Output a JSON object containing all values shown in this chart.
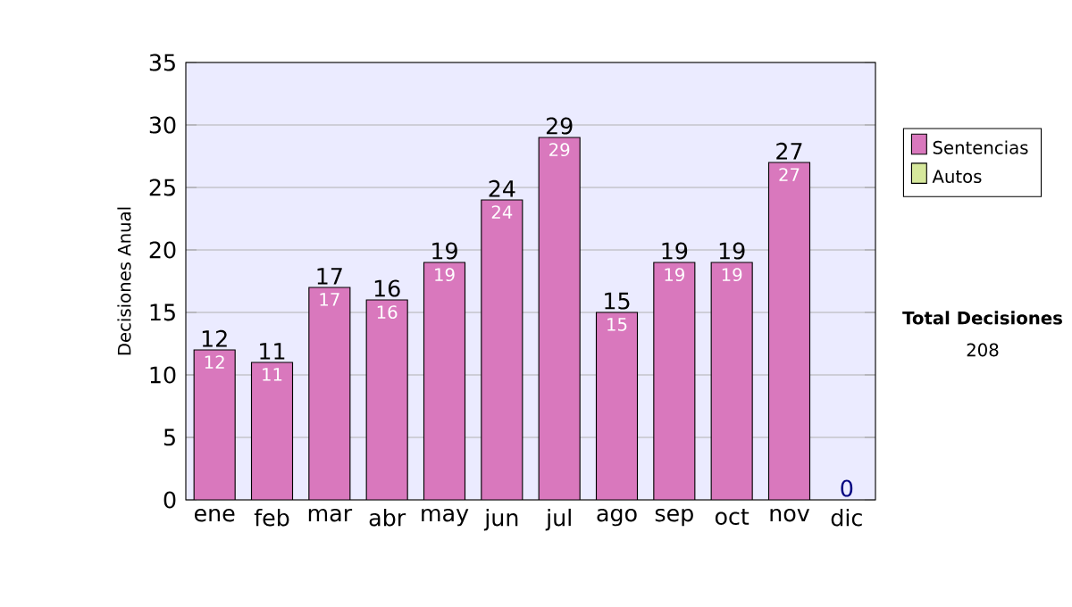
{
  "chart_data": {
    "type": "bar",
    "stacked": true,
    "ylabel": "Decisiones Anual",
    "categories": [
      "ene",
      "feb",
      "mar",
      "abr",
      "may",
      "jun",
      "jul",
      "ago",
      "sep",
      "oct",
      "nov",
      "dic"
    ],
    "series": [
      {
        "name": "Sentencias",
        "color": "#d978bd",
        "values": [
          12,
          11,
          17,
          16,
          19,
          24,
          29,
          15,
          19,
          19,
          27,
          0
        ],
        "value_labels": [
          "12",
          "11",
          "17",
          "16",
          "19",
          "24",
          "29",
          "15",
          "19",
          "19",
          "27",
          null
        ]
      },
      {
        "name": "Autos",
        "color": "#d6e89c",
        "values": [
          0,
          0,
          0,
          0,
          0,
          0,
          0,
          0,
          0,
          0,
          0,
          0
        ]
      }
    ],
    "totals": [
      "12",
      "11",
      "17",
      "16",
      "19",
      "24",
      "29",
      "15",
      "19",
      "19",
      "27",
      "0"
    ],
    "ylim": [
      0,
      35
    ],
    "yticks": [
      0,
      5,
      10,
      15,
      20,
      25,
      30,
      35
    ],
    "grid": "y",
    "legend": "right",
    "annotations": [
      "Total Decisiones",
      "208"
    ]
  }
}
